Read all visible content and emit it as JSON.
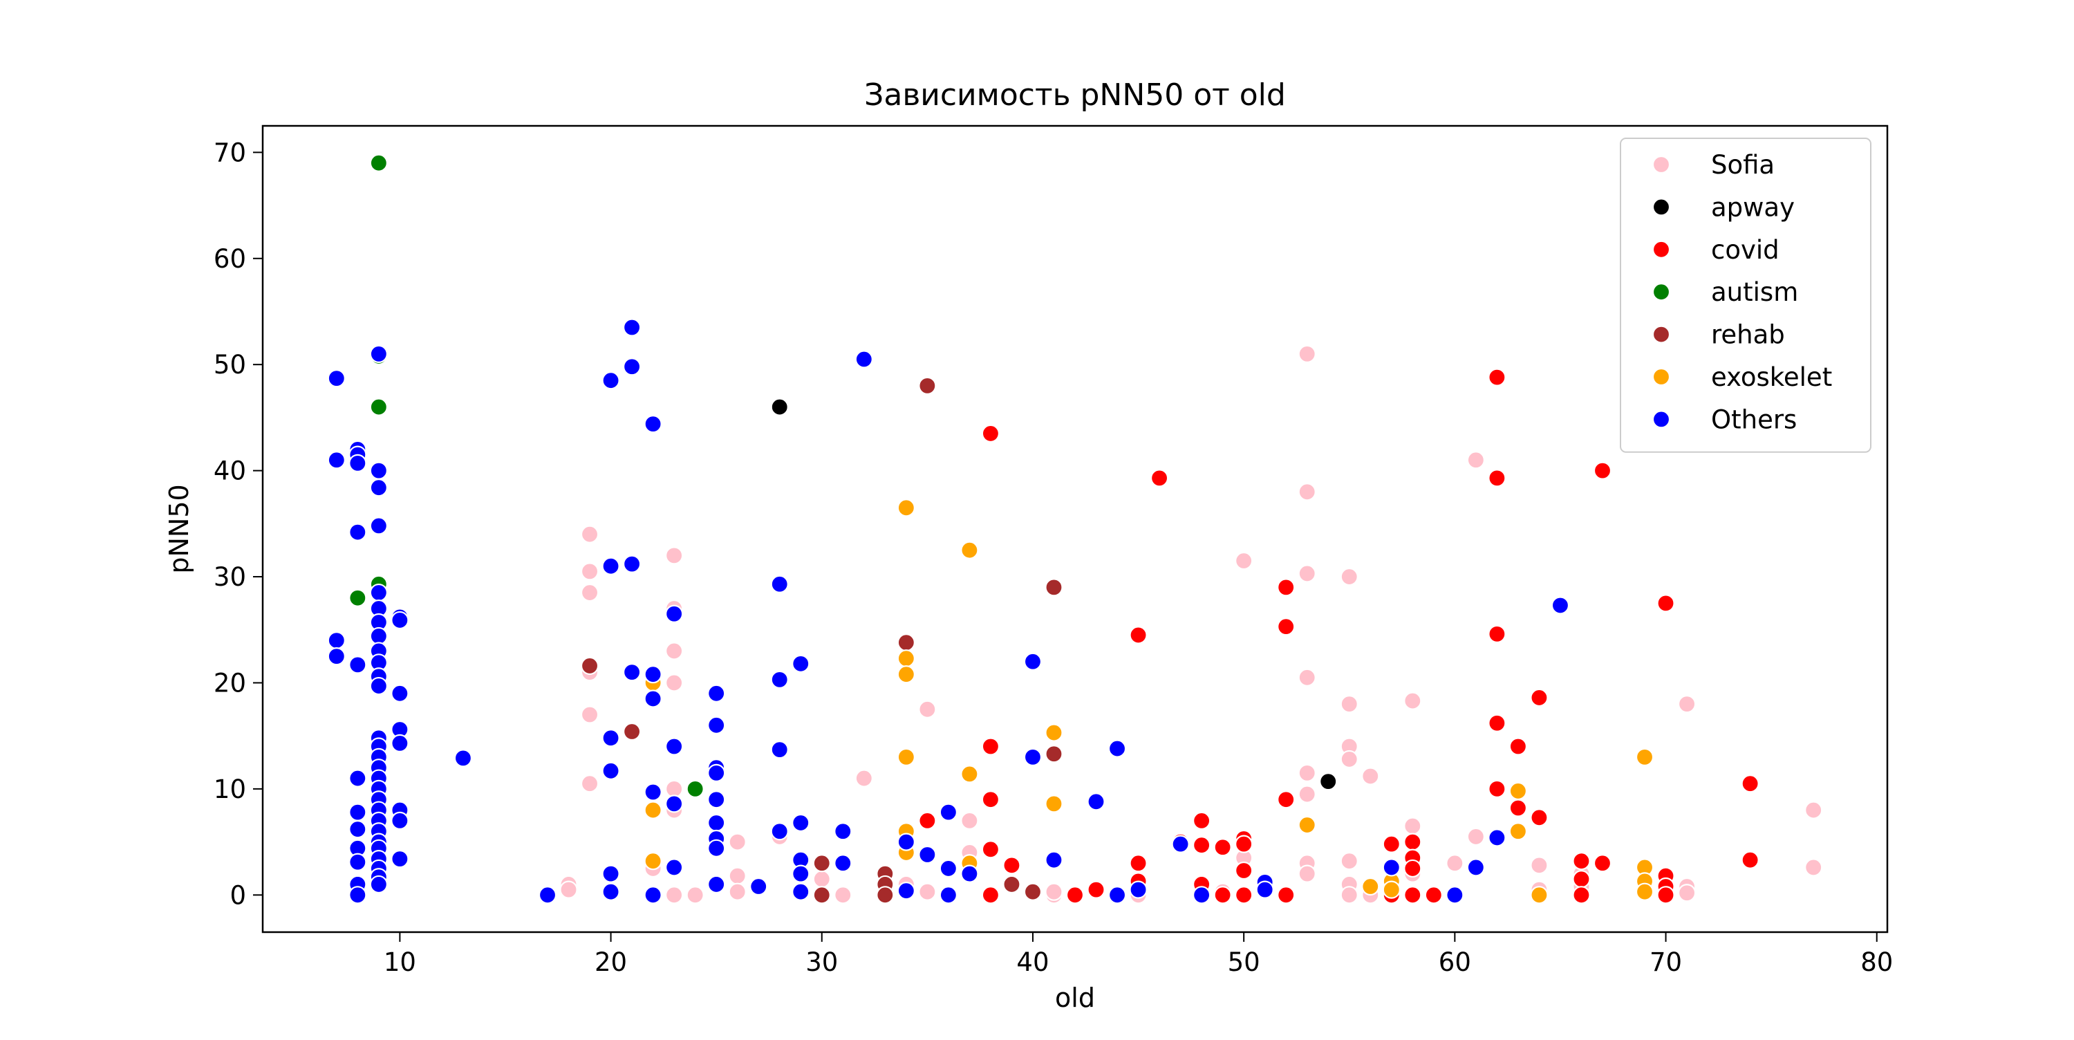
{
  "chart_data": {
    "type": "scatter",
    "title": "Зависимость pNN50 от old",
    "xlabel": "old",
    "ylabel": "pNN50",
    "xlim": [
      3.5,
      80.5
    ],
    "ylim": [
      -3.5,
      72.5
    ],
    "xticks": [
      10,
      20,
      30,
      40,
      50,
      60,
      70,
      80
    ],
    "yticks": [
      0,
      10,
      20,
      30,
      40,
      50,
      60,
      70
    ],
    "grid": false,
    "legend_position": "top-right",
    "series": [
      {
        "name": "Sofia",
        "color": "#ffc0cb",
        "points": [
          [
            18,
            1
          ],
          [
            18,
            0.5
          ],
          [
            19,
            34
          ],
          [
            19,
            30.5
          ],
          [
            19,
            28.5
          ],
          [
            19,
            21
          ],
          [
            19,
            17
          ],
          [
            19,
            10.5
          ],
          [
            22,
            3
          ],
          [
            22,
            2.5
          ],
          [
            23,
            32
          ],
          [
            23,
            27
          ],
          [
            23,
            23
          ],
          [
            23,
            20
          ],
          [
            23,
            10
          ],
          [
            23,
            8
          ],
          [
            23,
            0
          ],
          [
            24,
            0
          ],
          [
            26,
            5
          ],
          [
            26,
            1.8
          ],
          [
            26,
            0.3
          ],
          [
            28,
            5.5
          ],
          [
            30,
            1.5
          ],
          [
            31,
            0
          ],
          [
            32,
            11
          ],
          [
            34,
            1
          ],
          [
            35,
            17.5
          ],
          [
            35,
            0.3
          ],
          [
            37,
            7
          ],
          [
            37,
            4
          ],
          [
            41,
            0
          ],
          [
            41,
            0.3
          ],
          [
            45,
            0
          ],
          [
            48,
            0.5
          ],
          [
            49,
            0.3
          ],
          [
            50,
            31.5
          ],
          [
            50,
            3.5
          ],
          [
            53,
            51
          ],
          [
            53,
            38
          ],
          [
            53,
            30.3
          ],
          [
            53,
            20.5
          ],
          [
            53,
            11.5
          ],
          [
            53,
            9.5
          ],
          [
            53,
            3
          ],
          [
            53,
            2
          ],
          [
            55,
            30
          ],
          [
            55,
            18
          ],
          [
            55,
            14
          ],
          [
            55,
            12.8
          ],
          [
            55,
            3.2
          ],
          [
            55,
            1
          ],
          [
            55,
            0
          ],
          [
            56,
            11.2
          ],
          [
            56,
            0
          ],
          [
            57,
            0.5
          ],
          [
            58,
            18.3
          ],
          [
            58,
            6.5
          ],
          [
            58,
            2
          ],
          [
            60,
            3
          ],
          [
            61,
            41
          ],
          [
            61,
            5.5
          ],
          [
            64,
            2.8
          ],
          [
            64,
            0.5
          ],
          [
            66,
            2
          ],
          [
            66,
            0.8
          ],
          [
            71,
            18
          ],
          [
            71,
            0.8
          ],
          [
            71,
            0.2
          ],
          [
            77,
            8
          ],
          [
            77,
            2.6
          ]
        ]
      },
      {
        "name": "apway",
        "color": "#000000",
        "points": [
          [
            28,
            46
          ],
          [
            54,
            10.7
          ]
        ]
      },
      {
        "name": "covid",
        "color": "#ff0000",
        "points": [
          [
            35,
            7
          ],
          [
            38,
            43.5
          ],
          [
            38,
            14
          ],
          [
            38,
            9
          ],
          [
            38,
            4.3
          ],
          [
            38,
            0
          ],
          [
            39,
            2.8
          ],
          [
            42,
            0
          ],
          [
            43,
            0.5
          ],
          [
            45,
            24.5
          ],
          [
            45,
            3
          ],
          [
            45,
            1.3
          ],
          [
            46,
            39.3
          ],
          [
            47,
            5
          ],
          [
            48,
            7
          ],
          [
            48,
            4.7
          ],
          [
            48,
            1
          ],
          [
            49,
            4.5
          ],
          [
            49,
            0
          ],
          [
            50,
            5.3
          ],
          [
            50,
            4.8
          ],
          [
            50,
            2.3
          ],
          [
            50,
            0
          ],
          [
            52,
            29
          ],
          [
            52,
            25.3
          ],
          [
            52,
            9
          ],
          [
            52,
            0
          ],
          [
            57,
            4.8
          ],
          [
            57,
            0
          ],
          [
            58,
            5
          ],
          [
            58,
            3.5
          ],
          [
            58,
            2.5
          ],
          [
            58,
            0
          ],
          [
            59,
            0
          ],
          [
            62,
            48.8
          ],
          [
            62,
            39.3
          ],
          [
            62,
            24.6
          ],
          [
            62,
            16.2
          ],
          [
            62,
            10
          ],
          [
            63,
            14
          ],
          [
            63,
            8.2
          ],
          [
            64,
            18.6
          ],
          [
            64,
            7.3
          ],
          [
            66,
            3.2
          ],
          [
            66,
            1.5
          ],
          [
            66,
            0
          ],
          [
            67,
            40
          ],
          [
            67,
            3
          ],
          [
            70,
            27.5
          ],
          [
            70,
            1.8
          ],
          [
            70,
            0.8
          ],
          [
            70,
            0
          ],
          [
            74,
            10.5
          ],
          [
            74,
            3.3
          ]
        ]
      },
      {
        "name": "autism",
        "color": "#008000",
        "points": [
          [
            8,
            28
          ],
          [
            9,
            69
          ],
          [
            9,
            50.8
          ],
          [
            9,
            46
          ],
          [
            9,
            29.3
          ],
          [
            24,
            10
          ]
        ]
      },
      {
        "name": "rehab",
        "color": "#a52a2a",
        "points": [
          [
            19,
            21.6
          ],
          [
            21,
            15.4
          ],
          [
            30,
            3
          ],
          [
            30,
            0
          ],
          [
            33,
            2
          ],
          [
            33,
            1
          ],
          [
            33,
            0
          ],
          [
            35,
            48
          ],
          [
            34,
            23.8
          ],
          [
            39,
            1
          ],
          [
            40,
            0.3
          ],
          [
            41,
            29
          ],
          [
            41,
            13.3
          ]
        ]
      },
      {
        "name": "exoskelet",
        "color": "#ffa500",
        "points": [
          [
            22,
            20
          ],
          [
            22,
            8
          ],
          [
            22,
            3.2
          ],
          [
            34,
            36.5
          ],
          [
            34,
            22.3
          ],
          [
            34,
            20.8
          ],
          [
            34,
            13
          ],
          [
            34,
            6
          ],
          [
            34,
            4
          ],
          [
            37,
            32.5
          ],
          [
            37,
            11.4
          ],
          [
            37,
            3
          ],
          [
            41,
            15.3
          ],
          [
            41,
            8.6
          ],
          [
            53,
            6.6
          ],
          [
            56,
            0.8
          ],
          [
            57,
            1.3
          ],
          [
            57,
            0.5
          ],
          [
            63,
            9.8
          ],
          [
            63,
            6
          ],
          [
            64,
            0
          ],
          [
            69,
            13
          ],
          [
            69,
            2.6
          ],
          [
            69,
            1.3
          ],
          [
            69,
            0.3
          ]
        ]
      },
      {
        "name": "Others",
        "color": "#0000ff",
        "points": [
          [
            7,
            48.7
          ],
          [
            7,
            41
          ],
          [
            7,
            24
          ],
          [
            7,
            22.5
          ],
          [
            8,
            42
          ],
          [
            8,
            41.5
          ],
          [
            8,
            40.7
          ],
          [
            8,
            34.2
          ],
          [
            8,
            21.7
          ],
          [
            8,
            11
          ],
          [
            8,
            7.8
          ],
          [
            8,
            6.2
          ],
          [
            8,
            4.4
          ],
          [
            8,
            3.1
          ],
          [
            8,
            1
          ],
          [
            8,
            0
          ],
          [
            9,
            51
          ],
          [
            9,
            40
          ],
          [
            9,
            38.4
          ],
          [
            9,
            34.8
          ],
          [
            9,
            28.5
          ],
          [
            9,
            27
          ],
          [
            9,
            25.7
          ],
          [
            9,
            24.4
          ],
          [
            9,
            23
          ],
          [
            9,
            21.9
          ],
          [
            9,
            20.6
          ],
          [
            9,
            19.7
          ],
          [
            9,
            14.8
          ],
          [
            9,
            14
          ],
          [
            9,
            13
          ],
          [
            9,
            12
          ],
          [
            9,
            11
          ],
          [
            9,
            10
          ],
          [
            9,
            9
          ],
          [
            9,
            8
          ],
          [
            9,
            7
          ],
          [
            9,
            6
          ],
          [
            9,
            5
          ],
          [
            9,
            4.4
          ],
          [
            9,
            3.4
          ],
          [
            9,
            2.5
          ],
          [
            9,
            1.7
          ],
          [
            9,
            1
          ],
          [
            10,
            26.2
          ],
          [
            10,
            25.9
          ],
          [
            10,
            19
          ],
          [
            10,
            15.6
          ],
          [
            10,
            14.3
          ],
          [
            10,
            8
          ],
          [
            10,
            7
          ],
          [
            10,
            3.4
          ],
          [
            13,
            12.9
          ],
          [
            17,
            0
          ],
          [
            20,
            48.5
          ],
          [
            20,
            31
          ],
          [
            20,
            14.8
          ],
          [
            20,
            11.7
          ],
          [
            20,
            2
          ],
          [
            20,
            0.3
          ],
          [
            21,
            53.5
          ],
          [
            21,
            49.8
          ],
          [
            21,
            31.2
          ],
          [
            21,
            21
          ],
          [
            22,
            44.4
          ],
          [
            22,
            20.8
          ],
          [
            22,
            18.5
          ],
          [
            22,
            9.7
          ],
          [
            22,
            0
          ],
          [
            23,
            26.5
          ],
          [
            23,
            14
          ],
          [
            23,
            8.6
          ],
          [
            23,
            2.6
          ],
          [
            25,
            19
          ],
          [
            25,
            16
          ],
          [
            25,
            12
          ],
          [
            25,
            11.5
          ],
          [
            25,
            9
          ],
          [
            25,
            6.8
          ],
          [
            25,
            5.3
          ],
          [
            25,
            4.4
          ],
          [
            25,
            1
          ],
          [
            27,
            0.8
          ],
          [
            28,
            29.3
          ],
          [
            28,
            20.3
          ],
          [
            28,
            13.7
          ],
          [
            28,
            6
          ],
          [
            29,
            21.8
          ],
          [
            29,
            6.8
          ],
          [
            29,
            3.3
          ],
          [
            29,
            2
          ],
          [
            29,
            0.3
          ],
          [
            31,
            6
          ],
          [
            31,
            3
          ],
          [
            32,
            50.5
          ],
          [
            34,
            5
          ],
          [
            34,
            0.4
          ],
          [
            35,
            3.8
          ],
          [
            36,
            7.8
          ],
          [
            36,
            2.5
          ],
          [
            36,
            0
          ],
          [
            37,
            2
          ],
          [
            40,
            22
          ],
          [
            40,
            13
          ],
          [
            41,
            3.3
          ],
          [
            43,
            8.8
          ],
          [
            44,
            13.8
          ],
          [
            44,
            0
          ],
          [
            45,
            0.5
          ],
          [
            47,
            4.8
          ],
          [
            48,
            0
          ],
          [
            51,
            1.2
          ],
          [
            51,
            0.5
          ],
          [
            57,
            2.6
          ],
          [
            60,
            0
          ],
          [
            61,
            2.6
          ],
          [
            62,
            5.4
          ],
          [
            65,
            27.3
          ]
        ]
      }
    ]
  }
}
